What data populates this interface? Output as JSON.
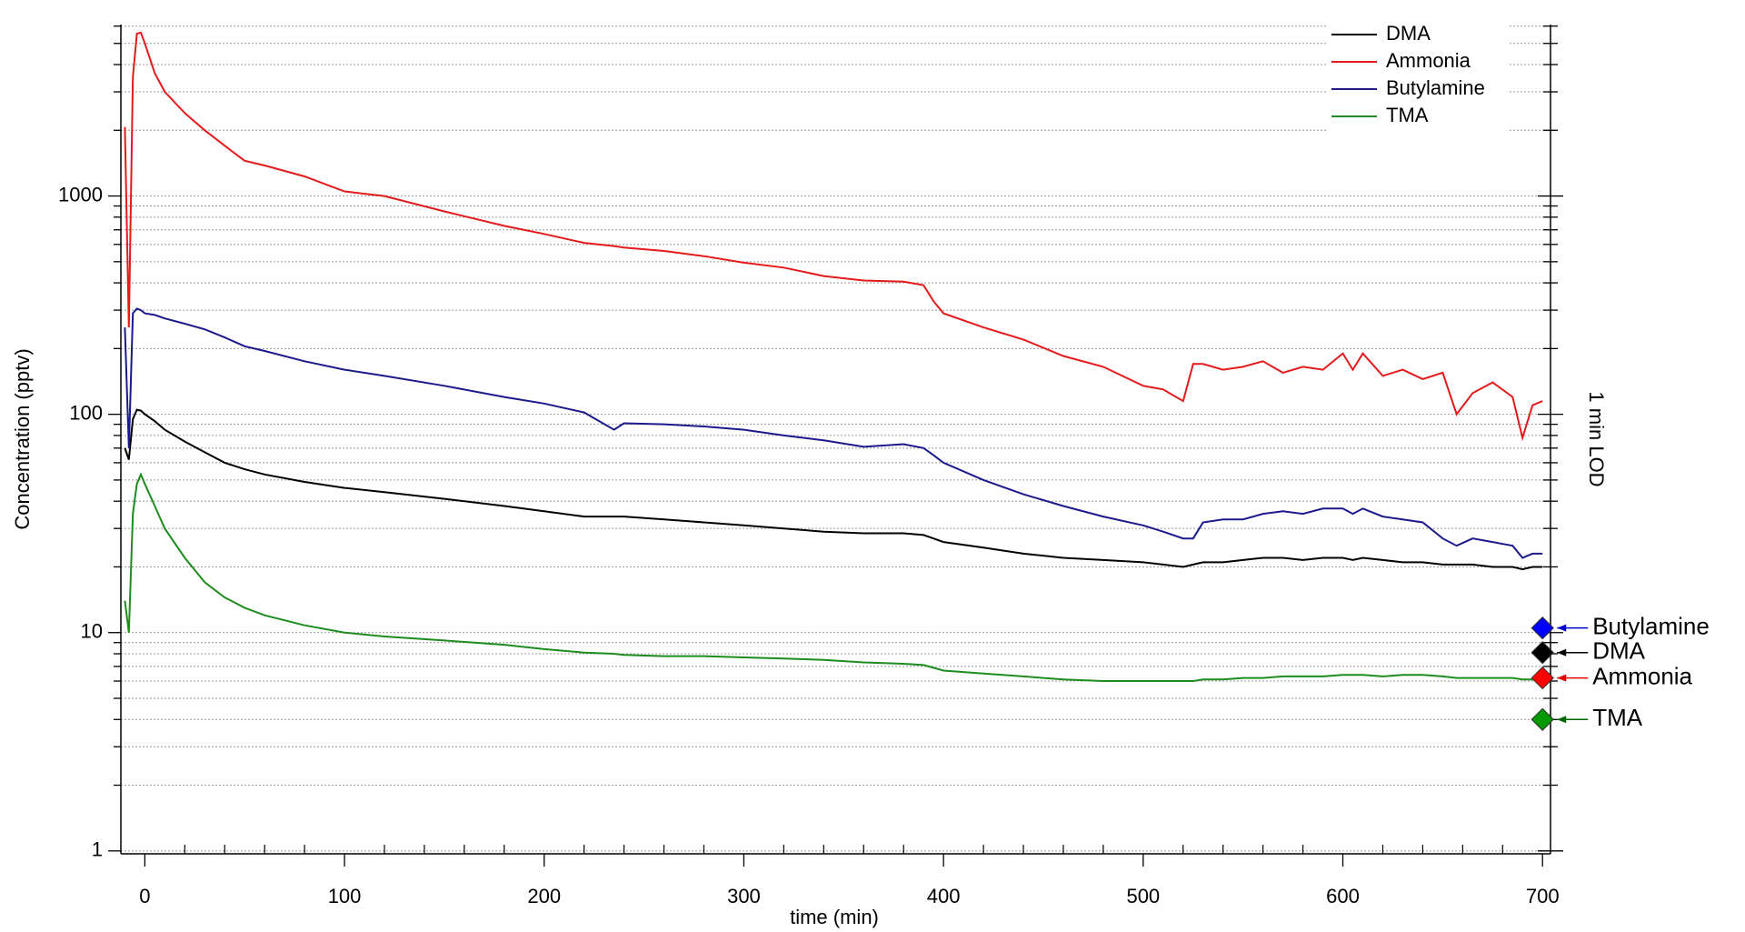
{
  "chart_data": {
    "type": "line",
    "log_y": true,
    "grid": true,
    "legend": "top-right",
    "x_label": "time (min)",
    "y_label": "Concentration (pptv)",
    "y2_label": "1 min LOD",
    "xlim": [
      -12,
      704
    ],
    "xticks": [
      0,
      100,
      200,
      300,
      400,
      500,
      600,
      700
    ],
    "xminorticks": [
      20,
      40,
      60,
      80,
      120,
      140,
      160,
      180,
      220,
      240,
      260,
      280,
      320,
      340,
      360,
      380,
      420,
      440,
      460,
      480,
      520,
      540,
      560,
      580,
      620,
      640,
      660,
      680
    ],
    "ylim": [
      0.97,
      6100
    ],
    "yticks": [
      1,
      10,
      100,
      1000
    ],
    "yminorticks": [
      2,
      3,
      4,
      5,
      6,
      7,
      8,
      9,
      20,
      30,
      40,
      50,
      60,
      70,
      80,
      90,
      200,
      300,
      400,
      500,
      600,
      700,
      800,
      900,
      2000,
      3000,
      4000,
      5000,
      6000
    ],
    "x": [
      -10,
      -8,
      -6,
      -4,
      -2,
      0,
      5,
      10,
      20,
      30,
      40,
      50,
      60,
      80,
      100,
      120,
      150,
      180,
      200,
      220,
      235,
      240,
      260,
      280,
      300,
      320,
      340,
      360,
      380,
      390,
      395,
      400,
      420,
      440,
      460,
      480,
      500,
      510,
      520,
      525,
      530,
      540,
      550,
      560,
      570,
      580,
      590,
      600,
      605,
      610,
      620,
      630,
      640,
      650,
      657,
      665,
      675,
      685,
      690,
      695,
      700
    ],
    "series": [
      {
        "name": "DMA",
        "color": "#000000",
        "values": [
          70,
          62,
          95,
          105,
          104,
          100,
          93,
          85,
          75,
          67,
          60,
          56,
          53,
          49,
          46,
          44,
          41,
          38,
          36,
          34,
          34,
          34,
          33,
          32,
          31,
          30,
          29,
          28.5,
          28.5,
          28,
          27,
          26,
          24.5,
          23,
          22,
          21.5,
          21,
          20.5,
          20,
          20.5,
          21,
          21,
          21.5,
          22,
          22,
          21.5,
          22,
          22,
          21.5,
          22,
          21.5,
          21,
          21,
          20.5,
          20.5,
          20.5,
          20,
          20,
          19.5,
          20,
          20
        ]
      },
      {
        "name": "Ammonia",
        "color": "#e41a1c",
        "values": [
          2070,
          250,
          3500,
          5540,
          5600,
          5000,
          3650,
          3000,
          2400,
          2000,
          1700,
          1450,
          1380,
          1230,
          1050,
          1000,
          850,
          730,
          670,
          610,
          590,
          580,
          560,
          530,
          495,
          470,
          430,
          410,
          405,
          390,
          330,
          290,
          250,
          220,
          185,
          165,
          135,
          130,
          115,
          170,
          170,
          160,
          165,
          175,
          155,
          165,
          160,
          190,
          160,
          190,
          150,
          160,
          145,
          155,
          100,
          125,
          140,
          120,
          78,
          110,
          115
        ]
      },
      {
        "name": "Butylamine",
        "color": "#1a1a8c",
        "values": [
          250,
          70,
          290,
          305,
          300,
          290,
          285,
          275,
          260,
          245,
          225,
          205,
          195,
          175,
          160,
          150,
          135,
          120,
          112,
          102,
          85,
          91,
          90,
          88,
          85,
          80,
          76,
          71,
          73,
          70,
          65,
          60,
          50,
          43,
          38,
          34,
          31,
          29,
          27,
          27,
          32,
          33,
          33,
          35,
          36,
          35,
          37,
          37,
          35,
          37,
          34,
          33,
          32,
          27,
          25,
          27,
          26,
          25,
          22,
          23,
          23
        ]
      },
      {
        "name": "TMA",
        "color": "#1e8c1e",
        "values": [
          14,
          10,
          35,
          48,
          53,
          48,
          38,
          30,
          22,
          17,
          14.5,
          13,
          12,
          10.8,
          10,
          9.6,
          9.2,
          8.8,
          8.4,
          8.1,
          8,
          7.9,
          7.8,
          7.8,
          7.7,
          7.6,
          7.5,
          7.3,
          7.2,
          7.1,
          6.9,
          6.7,
          6.5,
          6.3,
          6.1,
          6.0,
          6.0,
          6.0,
          6.0,
          6.0,
          6.1,
          6.1,
          6.2,
          6.2,
          6.3,
          6.3,
          6.3,
          6.4,
          6.4,
          6.4,
          6.3,
          6.4,
          6.4,
          6.3,
          6.2,
          6.2,
          6.2,
          6.2,
          6.1,
          6.1,
          6.1
        ]
      }
    ],
    "lod": {
      "x": 700,
      "markers": [
        {
          "name": "Butylamine",
          "color": "#0000ff",
          "label_color": "#0000cc",
          "value": 10.5
        },
        {
          "name": "DMA",
          "color": "#000000",
          "label_color": "#000000",
          "value": 8.1
        },
        {
          "name": "Ammonia",
          "color": "#ff0000",
          "label_color": "#e00000",
          "value": 6.2
        },
        {
          "name": "TMA",
          "color": "#009900",
          "label_color": "#006600",
          "value": 4.0
        }
      ]
    }
  }
}
